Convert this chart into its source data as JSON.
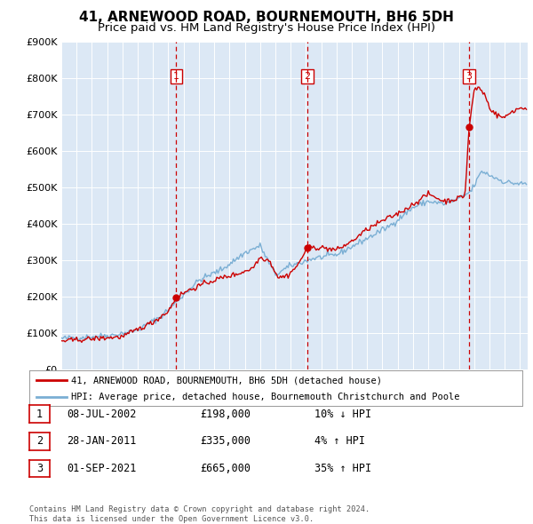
{
  "title": "41, ARNEWOOD ROAD, BOURNEMOUTH, BH6 5DH",
  "subtitle": "Price paid vs. HM Land Registry's House Price Index (HPI)",
  "ylim": [
    0,
    900000
  ],
  "yticks": [
    0,
    100000,
    200000,
    300000,
    400000,
    500000,
    600000,
    700000,
    800000,
    900000
  ],
  "ytick_labels": [
    "£0",
    "£100K",
    "£200K",
    "£300K",
    "£400K",
    "£500K",
    "£600K",
    "£700K",
    "£800K",
    "£900K"
  ],
  "xlim_start": 1995.0,
  "xlim_end": 2025.5,
  "hpi_color": "#7bafd4",
  "price_color": "#cc0000",
  "vline_color": "#cc0000",
  "background_color": "#dce8f5",
  "sale_points": [
    {
      "year": 2002.52,
      "price": 198000,
      "label": "1"
    },
    {
      "year": 2011.08,
      "price": 335000,
      "label": "2"
    },
    {
      "year": 2021.67,
      "price": 665000,
      "label": "3"
    }
  ],
  "legend_entries": [
    "41, ARNEWOOD ROAD, BOURNEMOUTH, BH6 5DH (detached house)",
    "HPI: Average price, detached house, Bournemouth Christchurch and Poole"
  ],
  "table_rows": [
    {
      "num": "1",
      "date": "08-JUL-2002",
      "price": "£198,000",
      "hpi": "10% ↓ HPI"
    },
    {
      "num": "2",
      "date": "28-JAN-2011",
      "price": "£335,000",
      "hpi": "4% ↑ HPI"
    },
    {
      "num": "3",
      "date": "01-SEP-2021",
      "price": "£665,000",
      "hpi": "35% ↑ HPI"
    }
  ],
  "footer": "Contains HM Land Registry data © Crown copyright and database right 2024.\nThis data is licensed under the Open Government Licence v3.0.",
  "title_fontsize": 11,
  "subtitle_fontsize": 9.5,
  "hpi_anchors_x": [
    1995.0,
    1997.0,
    1998.5,
    2000.0,
    2001.5,
    2002.5,
    2004.0,
    2005.5,
    2007.0,
    2008.0,
    2009.0,
    2010.0,
    2011.5,
    2013.0,
    2015.0,
    2016.5,
    2018.0,
    2019.0,
    2020.0,
    2021.0,
    2021.8,
    2022.5,
    2023.2,
    2024.0,
    2025.0
  ],
  "hpi_anchors_y": [
    85000,
    90000,
    95000,
    108000,
    145000,
    185000,
    245000,
    275000,
    320000,
    340000,
    260000,
    285000,
    305000,
    315000,
    360000,
    395000,
    445000,
    462000,
    455000,
    468000,
    490000,
    545000,
    530000,
    515000,
    510000
  ],
  "price_anchors_x": [
    1995.0,
    1997.0,
    1999.0,
    2001.0,
    2002.0,
    2002.52,
    2003.2,
    2004.5,
    2005.5,
    2006.5,
    2007.5,
    2008.0,
    2008.6,
    2009.2,
    2009.8,
    2010.5,
    2011.08,
    2012.0,
    2013.0,
    2014.0,
    2015.0,
    2016.0,
    2017.0,
    2017.8,
    2018.5,
    2019.0,
    2019.5,
    2020.0,
    2020.8,
    2021.4,
    2021.67,
    2022.0,
    2022.3,
    2022.7,
    2023.0,
    2023.5,
    2024.0,
    2024.5,
    2025.0
  ],
  "price_anchors_y": [
    78000,
    84000,
    90000,
    130000,
    160000,
    198000,
    215000,
    238000,
    252000,
    262000,
    278000,
    308000,
    300000,
    252000,
    258000,
    288000,
    335000,
    335000,
    328000,
    352000,
    385000,
    408000,
    428000,
    448000,
    468000,
    482000,
    473000,
    462000,
    468000,
    478000,
    665000,
    768000,
    775000,
    755000,
    720000,
    698000,
    692000,
    710000,
    718000
  ]
}
